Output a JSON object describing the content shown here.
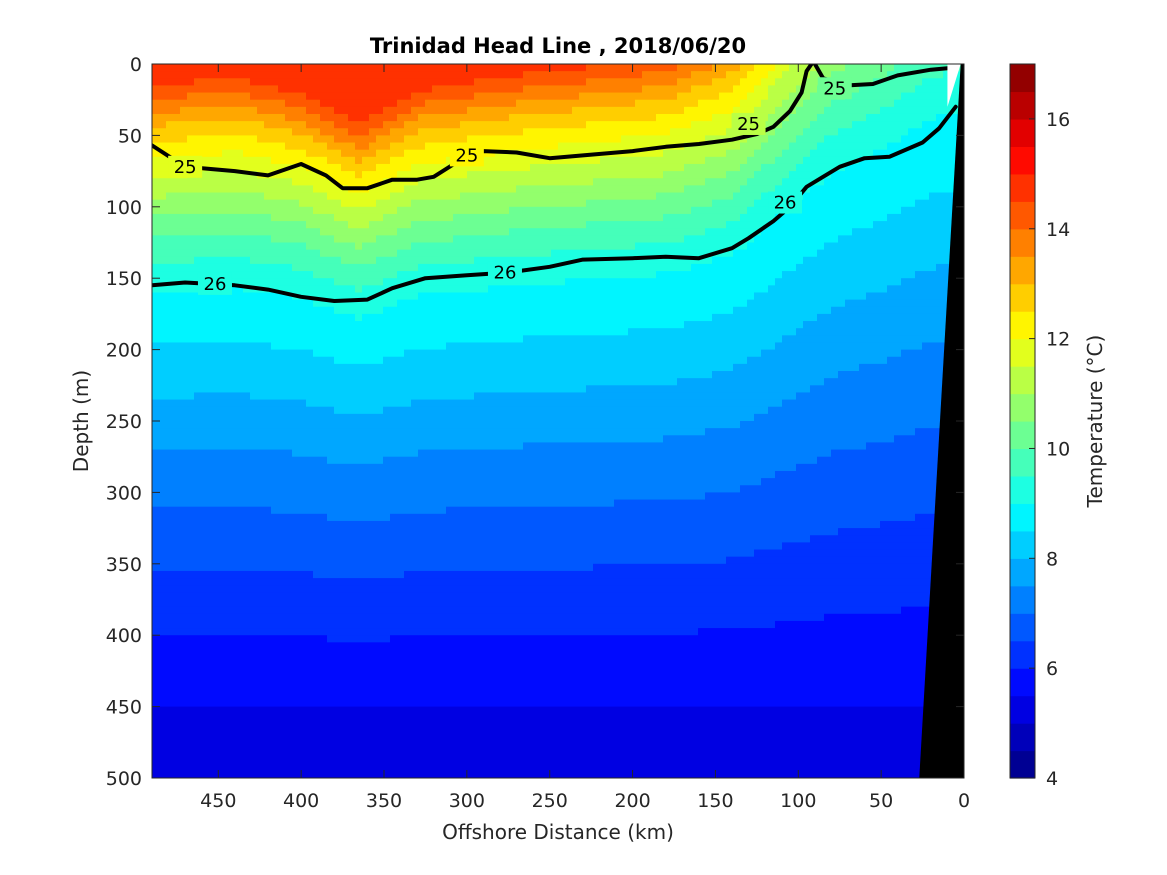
{
  "chart_data": {
    "type": "heatmap",
    "subtype": "filled-contour-section",
    "title": "Trinidad Head Line , 2018/06/20",
    "xlabel": "Offshore Distance (km)",
    "ylabel": "Depth (m)",
    "xlim": [
      490,
      0
    ],
    "ylim": [
      0,
      500
    ],
    "x_reversed": true,
    "y_reversed": true,
    "x_ticks": [
      450,
      400,
      350,
      300,
      250,
      200,
      150,
      100,
      50,
      0
    ],
    "y_ticks": [
      0,
      50,
      100,
      150,
      200,
      250,
      300,
      350,
      400,
      450,
      500
    ],
    "colorbar": {
      "label": "Temperature (°C)",
      "range": [
        4,
        17
      ],
      "ticks": [
        4,
        6,
        8,
        10,
        12,
        14,
        16
      ],
      "colormap": "jet",
      "levels": 26
    },
    "temperature_profile": [
      {
        "depth": 0,
        "temp": 14.8
      },
      {
        "depth": 10,
        "temp": 14.4
      },
      {
        "depth": 25,
        "temp": 13.6
      },
      {
        "depth": 40,
        "temp": 12.8
      },
      {
        "depth": 55,
        "temp": 12.2
      },
      {
        "depth": 70,
        "temp": 11.6
      },
      {
        "depth": 90,
        "temp": 10.9
      },
      {
        "depth": 110,
        "temp": 10.2
      },
      {
        "depth": 130,
        "temp": 9.6
      },
      {
        "depth": 155,
        "temp": 9.0
      },
      {
        "depth": 185,
        "temp": 8.6
      },
      {
        "depth": 215,
        "temp": 8.2
      },
      {
        "depth": 245,
        "temp": 7.8
      },
      {
        "depth": 275,
        "temp": 7.4
      },
      {
        "depth": 310,
        "temp": 7.0
      },
      {
        "depth": 345,
        "temp": 6.6
      },
      {
        "depth": 380,
        "temp": 6.2
      },
      {
        "depth": 420,
        "temp": 5.8
      },
      {
        "depth": 460,
        "temp": 5.4
      },
      {
        "depth": 500,
        "temp": 5.0
      }
    ],
    "depth_shift": [
      {
        "x": 490,
        "shift": 8
      },
      {
        "x": 440,
        "shift": 2
      },
      {
        "x": 400,
        "shift": 14
      },
      {
        "x": 365,
        "shift": 38
      },
      {
        "x": 330,
        "shift": 12
      },
      {
        "x": 280,
        "shift": 2
      },
      {
        "x": 230,
        "shift": -5
      },
      {
        "x": 180,
        "shift": -12
      },
      {
        "x": 140,
        "shift": -30
      },
      {
        "x": 110,
        "shift": -65
      },
      {
        "x": 80,
        "shift": -95
      },
      {
        "x": 50,
        "shift": -110
      },
      {
        "x": 25,
        "shift": -125
      },
      {
        "x": 10,
        "shift": -130
      }
    ],
    "density_contours": [
      {
        "label": "25",
        "bold": true,
        "points": [
          [
            490,
            57
          ],
          [
            470,
            72
          ],
          [
            440,
            75
          ],
          [
            420,
            78
          ],
          [
            400,
            70
          ],
          [
            385,
            78
          ],
          [
            375,
            87
          ],
          [
            360,
            87
          ],
          [
            345,
            81
          ],
          [
            330,
            81
          ],
          [
            320,
            79
          ],
          [
            305,
            68
          ],
          [
            290,
            61
          ],
          [
            270,
            62
          ],
          [
            250,
            66
          ],
          [
            230,
            64
          ],
          [
            200,
            61
          ],
          [
            180,
            58
          ],
          [
            160,
            56
          ],
          [
            140,
            53
          ],
          [
            125,
            49
          ],
          [
            115,
            44
          ],
          [
            105,
            33
          ],
          [
            98,
            20
          ],
          [
            95,
            5
          ],
          [
            92,
            0
          ]
        ],
        "label_positions": [
          [
            470,
            72
          ],
          [
            300,
            64
          ],
          [
            130,
            42
          ]
        ]
      },
      {
        "label": "25",
        "bold": true,
        "points": [
          [
            90,
            0
          ],
          [
            85,
            10
          ],
          [
            70,
            15
          ],
          [
            55,
            14
          ],
          [
            40,
            8
          ],
          [
            20,
            4
          ],
          [
            10,
            3
          ]
        ],
        "label_positions": [
          [
            78,
            17
          ]
        ]
      },
      {
        "label": "26",
        "bold": true,
        "points": [
          [
            490,
            155
          ],
          [
            470,
            153
          ],
          [
            440,
            155
          ],
          [
            420,
            158
          ],
          [
            400,
            163
          ],
          [
            380,
            166
          ],
          [
            360,
            165
          ],
          [
            345,
            157
          ],
          [
            325,
            150
          ],
          [
            300,
            148
          ],
          [
            275,
            146
          ],
          [
            250,
            142
          ],
          [
            230,
            137
          ],
          [
            200,
            136
          ],
          [
            180,
            135
          ],
          [
            160,
            136
          ],
          [
            140,
            129
          ],
          [
            130,
            122
          ],
          [
            115,
            110
          ],
          [
            105,
            100
          ],
          [
            95,
            86
          ],
          [
            85,
            79
          ],
          [
            75,
            72
          ],
          [
            60,
            66
          ],
          [
            45,
            65
          ],
          [
            25,
            55
          ],
          [
            15,
            45
          ],
          [
            5,
            30
          ]
        ],
        "label_positions": [
          [
            452,
            154
          ],
          [
            277,
            146
          ],
          [
            108,
            97
          ]
        ]
      }
    ]
  }
}
